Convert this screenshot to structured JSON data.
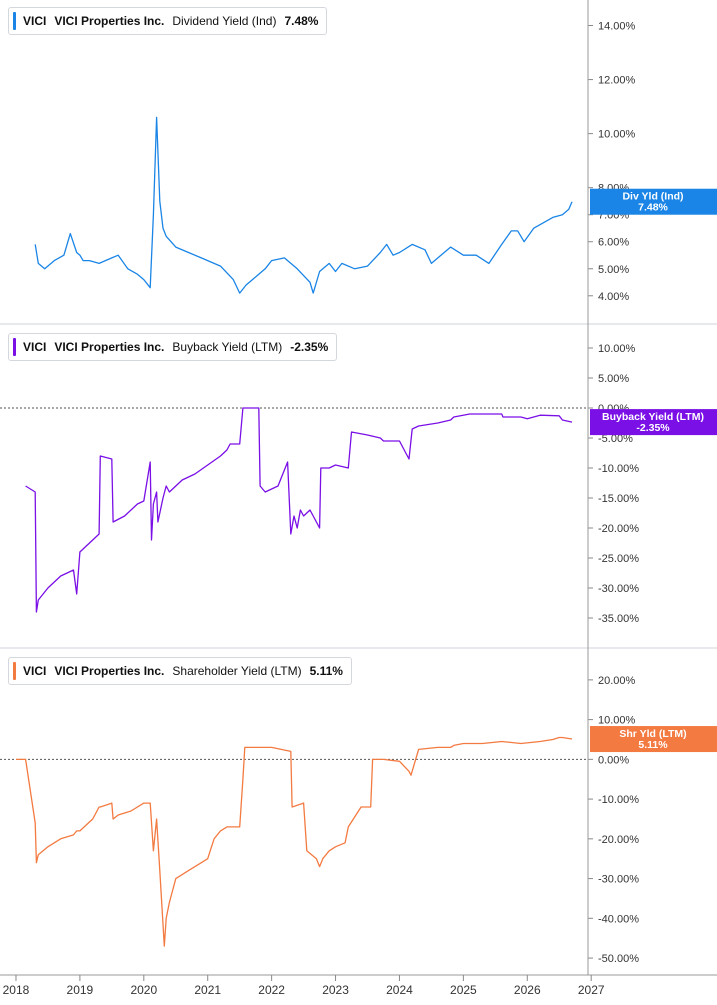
{
  "chart_data": [
    {
      "type": "line",
      "ticker": "VICI",
      "company": "VICI Properties Inc.",
      "metric": "Dividend Yield (Ind)",
      "latest": "7.48%",
      "badge_label": "Div Yld (Ind)",
      "badge_value": "7.48%",
      "color": "#1a85e6",
      "ylim": [
        3.4,
        14.5
      ],
      "yticks": [
        4,
        5,
        6,
        7,
        8,
        10,
        12,
        14
      ],
      "ytick_labels": [
        "4.00%",
        "5.00%",
        "6.00%",
        "7.00%",
        "8.00%",
        "10.00%",
        "12.00%",
        "14.00%"
      ],
      "zero_line": false,
      "series": [
        {
          "x": [
            2018.3,
            2018.35,
            2018.45,
            2018.6,
            2018.75,
            2018.85,
            2018.95,
            2019.0,
            2019.05,
            2019.15,
            2019.3,
            2019.5,
            2019.6,
            2019.75,
            2019.9,
            2020.0,
            2020.1,
            2020.15,
            2020.2,
            2020.25,
            2020.3,
            2020.35,
            2020.5,
            2020.7,
            2020.9,
            2021.1,
            2021.2,
            2021.4,
            2021.5,
            2021.6,
            2021.75,
            2021.9,
            2022.0,
            2022.2,
            2022.4,
            2022.6,
            2022.65,
            2022.75,
            2022.9,
            2023.0,
            2023.1,
            2023.3,
            2023.5,
            2023.7,
            2023.8,
            2023.9,
            2024.0,
            2024.2,
            2024.4,
            2024.5,
            2024.7,
            2024.8,
            2025.0,
            2025.2,
            2025.4,
            2025.6,
            2025.75,
            2025.85,
            2025.95,
            2026.1,
            2026.25,
            2026.4,
            2026.55,
            2026.65,
            2026.7
          ],
          "y": [
            5.9,
            5.2,
            5.0,
            5.3,
            5.5,
            6.3,
            5.6,
            5.5,
            5.3,
            5.3,
            5.2,
            5.4,
            5.5,
            5.0,
            4.8,
            4.6,
            4.3,
            7.0,
            10.6,
            7.5,
            6.5,
            6.2,
            5.8,
            5.6,
            5.4,
            5.2,
            5.1,
            4.6,
            4.1,
            4.4,
            4.7,
            5.0,
            5.3,
            5.4,
            5.0,
            4.5,
            4.1,
            4.9,
            5.2,
            4.9,
            5.2,
            5.0,
            5.1,
            5.6,
            5.9,
            5.5,
            5.6,
            5.9,
            5.7,
            5.2,
            5.6,
            5.8,
            5.5,
            5.5,
            5.2,
            5.9,
            6.4,
            6.4,
            6.0,
            6.5,
            6.7,
            6.9,
            7.0,
            7.2,
            7.48
          ]
        }
      ]
    },
    {
      "type": "line",
      "ticker": "VICI",
      "company": "VICI Properties Inc.",
      "metric": "Buyback Yield (LTM)",
      "latest": "-2.35%",
      "badge_label": "Buyback Yield (LTM)",
      "badge_value": "-2.35%",
      "color": "#7a0fe6",
      "ylim": [
        -38,
        12
      ],
      "yticks": [
        -35,
        -30,
        -25,
        -20,
        -15,
        -10,
        -5,
        0,
        5,
        10
      ],
      "ytick_labels": [
        "-35.00%",
        "-30.00%",
        "-25.00%",
        "-20.00%",
        "-15.00%",
        "-10.00%",
        "-5.00%",
        "0.00%",
        "5.00%",
        "10.00%"
      ],
      "zero_line": true,
      "series": [
        {
          "x": [
            2018.15,
            2018.3,
            2018.32,
            2018.35,
            2018.5,
            2018.7,
            2018.9,
            2018.95,
            2019.0,
            2019.3,
            2019.32,
            2019.5,
            2019.52,
            2019.7,
            2019.9,
            2020.0,
            2020.1,
            2020.12,
            2020.15,
            2020.2,
            2020.22,
            2020.3,
            2020.35,
            2020.4,
            2020.6,
            2020.8,
            2021.0,
            2021.2,
            2021.3,
            2021.35,
            2021.5,
            2021.55,
            2021.8,
            2021.82,
            2021.9,
            2022.0,
            2022.1,
            2022.25,
            2022.3,
            2022.35,
            2022.4,
            2022.45,
            2022.5,
            2022.6,
            2022.75,
            2022.77,
            2022.9,
            2023.0,
            2023.2,
            2023.25,
            2023.5,
            2023.7,
            2023.75,
            2024.0,
            2024.1,
            2024.15,
            2024.2,
            2024.3,
            2024.6,
            2024.8,
            2024.85,
            2025.1,
            2025.3,
            2025.6,
            2025.62,
            2025.9,
            2026.0,
            2026.2,
            2026.5,
            2026.55,
            2026.7
          ],
          "y": [
            -13,
            -14,
            -34,
            -32,
            -30,
            -28,
            -27,
            -31,
            -24,
            -21,
            -8,
            -8.5,
            -19,
            -18,
            -16,
            -15.5,
            -9,
            -22,
            -16,
            -14,
            -19,
            -15,
            -13,
            -14,
            -12,
            -11,
            -9.5,
            -8,
            -7,
            -6,
            -6,
            0,
            0,
            -13,
            -14,
            -13.5,
            -13,
            -9,
            -21,
            -18,
            -20,
            -17,
            -18,
            -17,
            -20,
            -10,
            -10,
            -9.5,
            -10,
            -4,
            -4.5,
            -5,
            -5.5,
            -5.5,
            -7.5,
            -8.5,
            -3.5,
            -3,
            -2.5,
            -2,
            -1.5,
            -1,
            -1,
            -1,
            -1.5,
            -1.5,
            -1.8,
            -1.2,
            -1.3,
            -2,
            -2.35
          ]
        }
      ]
    },
    {
      "type": "line",
      "ticker": "VICI",
      "company": "VICI Properties Inc.",
      "metric": "Shareholder Yield (LTM)",
      "latest": "5.11%",
      "badge_label": "Shr Yld (LTM)",
      "badge_value": "5.11%",
      "color": "#f37a41",
      "ylim": [
        -52,
        25
      ],
      "yticks": [
        -50,
        -40,
        -30,
        -20,
        -10,
        0,
        10,
        20
      ],
      "ytick_labels": [
        "-50.00%",
        "-40.00%",
        "-30.00%",
        "-20.00%",
        "-10.00%",
        "0.00%",
        "10.00%",
        "20.00%"
      ],
      "zero_line": true,
      "series": [
        {
          "x": [
            2018.0,
            2018.15,
            2018.3,
            2018.32,
            2018.35,
            2018.5,
            2018.7,
            2018.9,
            2018.95,
            2019.0,
            2019.2,
            2019.3,
            2019.32,
            2019.5,
            2019.52,
            2019.6,
            2019.8,
            2020.0,
            2020.1,
            2020.15,
            2020.2,
            2020.25,
            2020.32,
            2020.35,
            2020.4,
            2020.45,
            2020.5,
            2020.7,
            2020.9,
            2021.0,
            2021.1,
            2021.2,
            2021.3,
            2021.32,
            2021.5,
            2021.55,
            2021.58,
            2021.8,
            2022.0,
            2022.15,
            2022.3,
            2022.32,
            2022.5,
            2022.55,
            2022.7,
            2022.75,
            2022.8,
            2022.9,
            2023.0,
            2023.15,
            2023.2,
            2023.4,
            2023.55,
            2023.58,
            2023.75,
            2024.0,
            2024.15,
            2024.18,
            2024.3,
            2024.6,
            2024.8,
            2024.85,
            2025.0,
            2025.3,
            2025.6,
            2025.9,
            2026.2,
            2026.4,
            2026.5,
            2026.55,
            2026.7
          ],
          "y": [
            0,
            0,
            -16,
            -26,
            -24,
            -22,
            -20,
            -19,
            -18,
            -18,
            -15,
            -12,
            -12,
            -11,
            -15,
            -14,
            -13,
            -11,
            -11,
            -23,
            -15,
            -28,
            -47,
            -40,
            -36,
            -33,
            -30,
            -28,
            -26,
            -25,
            -20,
            -18,
            -17,
            -17,
            -17,
            -5,
            3,
            3,
            3,
            2.5,
            2,
            -12,
            -11,
            -23,
            -25,
            -27,
            -25,
            -23,
            -22,
            -21,
            -17,
            -12,
            -12,
            0,
            0,
            -0.5,
            -3,
            -4,
            2.5,
            3,
            3,
            3.5,
            4,
            4,
            4.5,
            4,
            4.5,
            5,
            5.5,
            5.5,
            5.11
          ]
        }
      ]
    }
  ],
  "x_axis": {
    "ticks": [
      2018,
      2019,
      2020,
      2021,
      2022,
      2023,
      2024,
      2025,
      2026,
      2027
    ],
    "tick_labels": [
      "2018",
      "2019",
      "2020",
      "2021",
      "2022",
      "2023",
      "2024",
      "2025",
      "2026",
      "2027"
    ],
    "xlim": [
      2017.75,
      2026.95
    ]
  }
}
